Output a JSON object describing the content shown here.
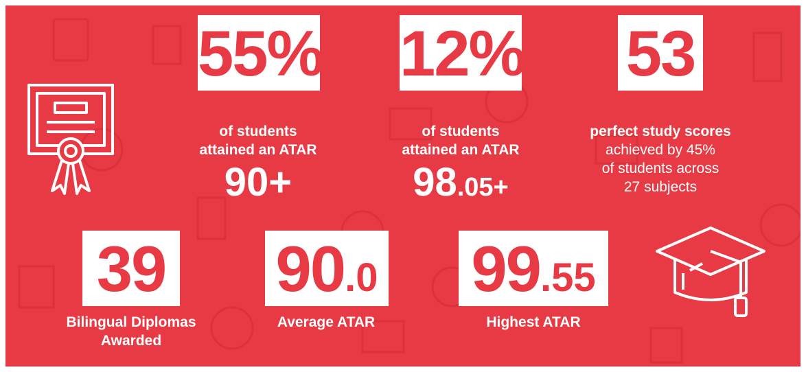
{
  "stats": [
    {
      "figure": "55%",
      "caption": [
        "of students",
        "attained an ATAR"
      ],
      "highlight": {
        "main": "90+"
      }
    },
    {
      "figure": "12%",
      "caption": [
        "of students",
        "attained an ATAR"
      ],
      "highlight": {
        "main": "98",
        "small": ".05+"
      }
    },
    {
      "figure": "53",
      "caption": [
        "perfect study scores"
      ],
      "detail": [
        "achieved by 45%",
        "of students across",
        "27 subjects"
      ]
    },
    {
      "figure": {
        "main": "39"
      },
      "caption": [
        "Bilingual Diplomas",
        "Awarded"
      ]
    },
    {
      "figure": {
        "main": "90",
        "small": ".0"
      },
      "caption": [
        "Average ATAR"
      ]
    },
    {
      "figure": {
        "main": "99",
        "small": ".55"
      },
      "caption": [
        "Highest ATAR"
      ]
    }
  ]
}
